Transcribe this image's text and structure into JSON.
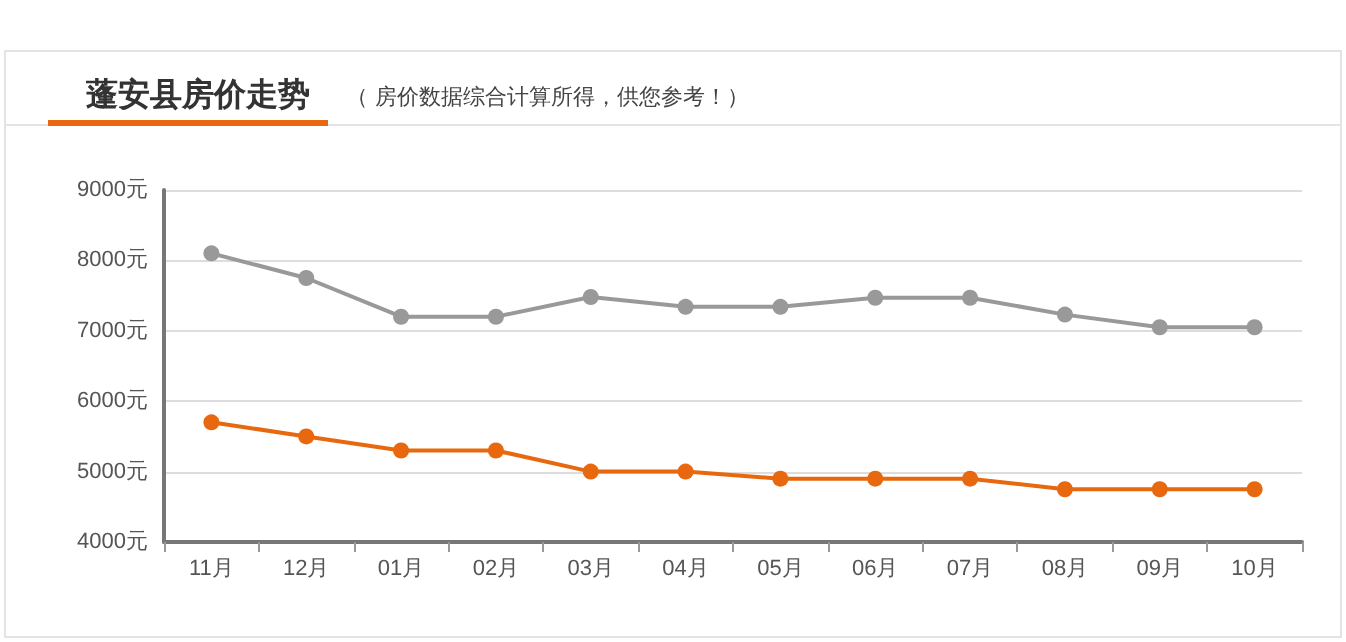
{
  "chart_data": {
    "type": "line",
    "title": "蓬安县房价走势",
    "subtitle": "（ 房价数据综合计算所得，供您参考！）",
    "categories": [
      "11月",
      "12月",
      "01月",
      "02月",
      "03月",
      "04月",
      "05月",
      "06月",
      "07月",
      "08月",
      "09月",
      "10月"
    ],
    "series": [
      {
        "color": "#999999",
        "values": [
          8100,
          7750,
          7200,
          7200,
          7480,
          7340,
          7340,
          7470,
          7470,
          7230,
          7050,
          7050
        ]
      },
      {
        "color": "#e8680f",
        "values": [
          5700,
          5500,
          5300,
          5300,
          5000,
          5000,
          4900,
          4900,
          4900,
          4750,
          4750,
          4750
        ]
      }
    ],
    "ylim": [
      4000,
      9000
    ],
    "yticks": [
      {
        "value": 4000,
        "label": "4000元"
      },
      {
        "value": 5000,
        "label": "5000元"
      },
      {
        "value": 6000,
        "label": "6000元"
      },
      {
        "value": 7000,
        "label": "7000元"
      },
      {
        "value": 8000,
        "label": "8000元"
      },
      {
        "value": 9000,
        "label": "9000元"
      }
    ],
    "grid": "y",
    "marker": "circle",
    "line_style": "solid"
  }
}
